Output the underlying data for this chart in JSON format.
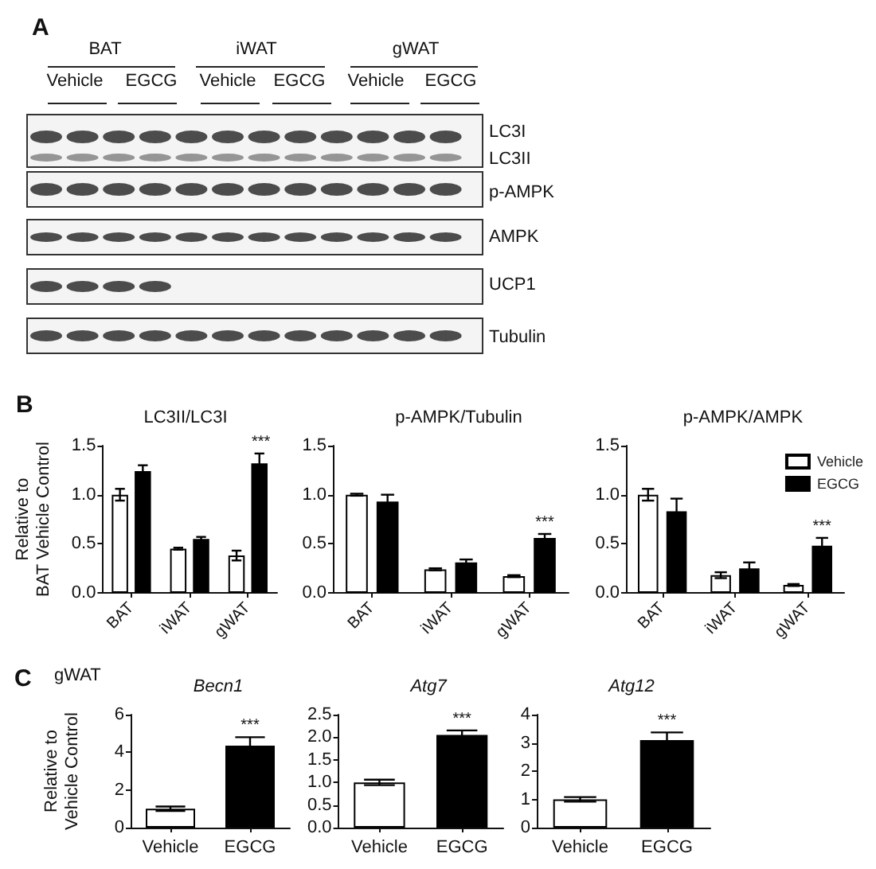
{
  "chart_data": [
    {
      "type": "other",
      "annotations": [
        "A",
        "BAT",
        "iWAT",
        "gWAT",
        "Vehicle",
        "EGCG",
        "Vehicle",
        "EGCG",
        "Vehicle",
        "EGCG",
        "LC3I",
        "LC3II",
        "p-AMPK",
        "AMPK",
        "UCP1",
        "Tubulin"
      ]
    },
    {
      "type": "bar",
      "title": "LC3II/LC3I",
      "ylabel": "Relative to\nBAT Vehicle Control",
      "categories": [
        "BAT",
        "iWAT",
        "gWAT"
      ],
      "series": [
        {
          "color": "#ffffff",
          "values": [
            1.0,
            0.45,
            0.38
          ],
          "errors": [
            0.06,
            0.01,
            0.05
          ]
        },
        {
          "color": "#000000",
          "values": [
            1.24,
            0.55,
            1.32
          ],
          "errors": [
            0.06,
            0.02,
            0.1
          ]
        }
      ],
      "ylim": [
        0,
        1.5
      ],
      "yticks": [
        {
          "value": 0,
          "label": "0.0"
        },
        {
          "value": 0.5,
          "label": "0.5"
        },
        {
          "value": 1,
          "label": "1.0"
        },
        {
          "value": 1.5,
          "label": "1.5"
        }
      ],
      "annotations": [
        "B",
        {
          "text": "***",
          "x": "gWAT",
          "y": 1.42
        }
      ]
    },
    {
      "type": "bar",
      "title": "p-AMPK/Tubulin",
      "categories": [
        "BAT",
        "iWAT",
        "gWAT"
      ],
      "series": [
        {
          "color": "#ffffff",
          "values": [
            1.0,
            0.24,
            0.17
          ],
          "errors": [
            0.01,
            0.01,
            0.01
          ]
        },
        {
          "color": "#000000",
          "values": [
            0.93,
            0.31,
            0.56
          ],
          "errors": [
            0.07,
            0.03,
            0.04
          ]
        }
      ],
      "ylim": [
        0,
        1.5
      ],
      "yticks": [
        {
          "value": 0,
          "label": "0.0"
        },
        {
          "value": 0.5,
          "label": "0.5"
        },
        {
          "value": 1,
          "label": "1.0"
        },
        {
          "value": 1.5,
          "label": "1.5"
        }
      ],
      "annotations": [
        {
          "text": "***",
          "x": "gWAT",
          "y": 0.6
        }
      ]
    },
    {
      "type": "bar",
      "title": "p-AMPK/AMPK",
      "categories": [
        "BAT",
        "iWAT",
        "gWAT"
      ],
      "legend": "top right",
      "series": [
        {
          "name": "Vehicle",
          "color": "#ffffff",
          "values": [
            1.0,
            0.18,
            0.08
          ],
          "errors": [
            0.06,
            0.03,
            0.01
          ]
        },
        {
          "name": "EGCG",
          "color": "#000000",
          "values": [
            0.83,
            0.25,
            0.48
          ],
          "errors": [
            0.13,
            0.06,
            0.08
          ]
        }
      ],
      "ylim": [
        0,
        1.5
      ],
      "yticks": [
        {
          "value": 0,
          "label": "0.0"
        },
        {
          "value": 0.5,
          "label": "0.5"
        },
        {
          "value": 1,
          "label": "1.0"
        },
        {
          "value": 1.5,
          "label": "1.5"
        }
      ],
      "annotations": [
        {
          "text": "***",
          "x": "gWAT",
          "y": 0.56
        }
      ]
    },
    {
      "type": "bar",
      "title": "Becn1",
      "ylabel": "Relative to\nVehicle Control",
      "categories": [
        "Vehicle",
        "EGCG"
      ],
      "values": [
        1.0,
        4.35
      ],
      "errors": [
        0.12,
        0.45
      ],
      "colors": [
        "#ffffff",
        "#000000"
      ],
      "ylim": [
        0,
        6
      ],
      "yticks": [
        0,
        2,
        4,
        6
      ],
      "annotations": [
        "C",
        "gWAT",
        {
          "text": "***",
          "x": "EGCG",
          "y": 4.8
        }
      ]
    },
    {
      "type": "bar",
      "title": "Atg7",
      "categories": [
        "Vehicle",
        "EGCG"
      ],
      "values": [
        1.0,
        2.05
      ],
      "errors": [
        0.06,
        0.1
      ],
      "colors": [
        "#ffffff",
        "#000000"
      ],
      "ylim": [
        0,
        2.5
      ],
      "yticks": [
        {
          "value": 0,
          "label": "0.0"
        },
        {
          "value": 0.5,
          "label": "0.5"
        },
        {
          "value": 1,
          "label": "1.0"
        },
        {
          "value": 1.5,
          "label": "1.5"
        },
        {
          "value": 2,
          "label": "2.0"
        },
        {
          "value": 2.5,
          "label": "2.5"
        }
      ],
      "annotations": [
        {
          "text": "***",
          "x": "EGCG",
          "y": 2.15
        }
      ]
    },
    {
      "type": "bar",
      "title": "Atg12",
      "categories": [
        "Vehicle",
        "EGCG"
      ],
      "values": [
        1.0,
        3.1
      ],
      "errors": [
        0.08,
        0.27
      ],
      "colors": [
        "#ffffff",
        "#000000"
      ],
      "ylim": [
        0,
        4
      ],
      "yticks": [
        0,
        1,
        2,
        3,
        4
      ],
      "annotations": [
        {
          "text": "***",
          "x": "EGCG",
          "y": 3.37
        }
      ]
    }
  ]
}
